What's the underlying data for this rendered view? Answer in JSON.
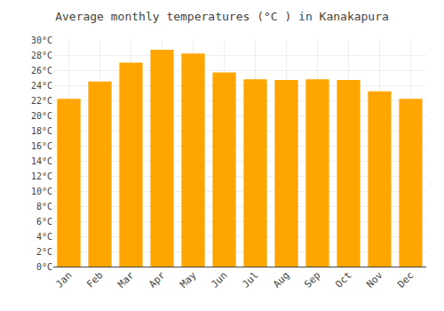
{
  "chart_data": {
    "type": "bar",
    "title": "Average monthly temperatures (°C ) in Kanakapura",
    "categories": [
      "Jan",
      "Feb",
      "Mar",
      "Apr",
      "May",
      "Jun",
      "Jul",
      "Aug",
      "Sep",
      "Oct",
      "Nov",
      "Dec"
    ],
    "values": [
      22.2,
      24.5,
      27.0,
      28.7,
      28.2,
      25.7,
      24.8,
      24.7,
      24.8,
      24.7,
      23.2,
      22.2
    ],
    "color": "#FFA500",
    "ylim": [
      0,
      30
    ],
    "yticks": [
      {
        "value": 0,
        "label": "0°C"
      },
      {
        "value": 2,
        "label": "2°C"
      },
      {
        "value": 4,
        "label": "4°C"
      },
      {
        "value": 6,
        "label": "6°C"
      },
      {
        "value": 8,
        "label": "8°C"
      },
      {
        "value": 10,
        "label": "10°C"
      },
      {
        "value": 12,
        "label": "12°C"
      },
      {
        "value": 14,
        "label": "14°C"
      },
      {
        "value": 16,
        "label": "16°C"
      },
      {
        "value": 18,
        "label": "18°C"
      },
      {
        "value": 20,
        "label": "20°C"
      },
      {
        "value": 22,
        "label": "22°C"
      },
      {
        "value": 24,
        "label": "24°C"
      },
      {
        "value": 26,
        "label": "26°C"
      },
      {
        "value": 28,
        "label": "28°C"
      },
      {
        "value": 30,
        "label": "30°C"
      }
    ],
    "grid": true
  }
}
